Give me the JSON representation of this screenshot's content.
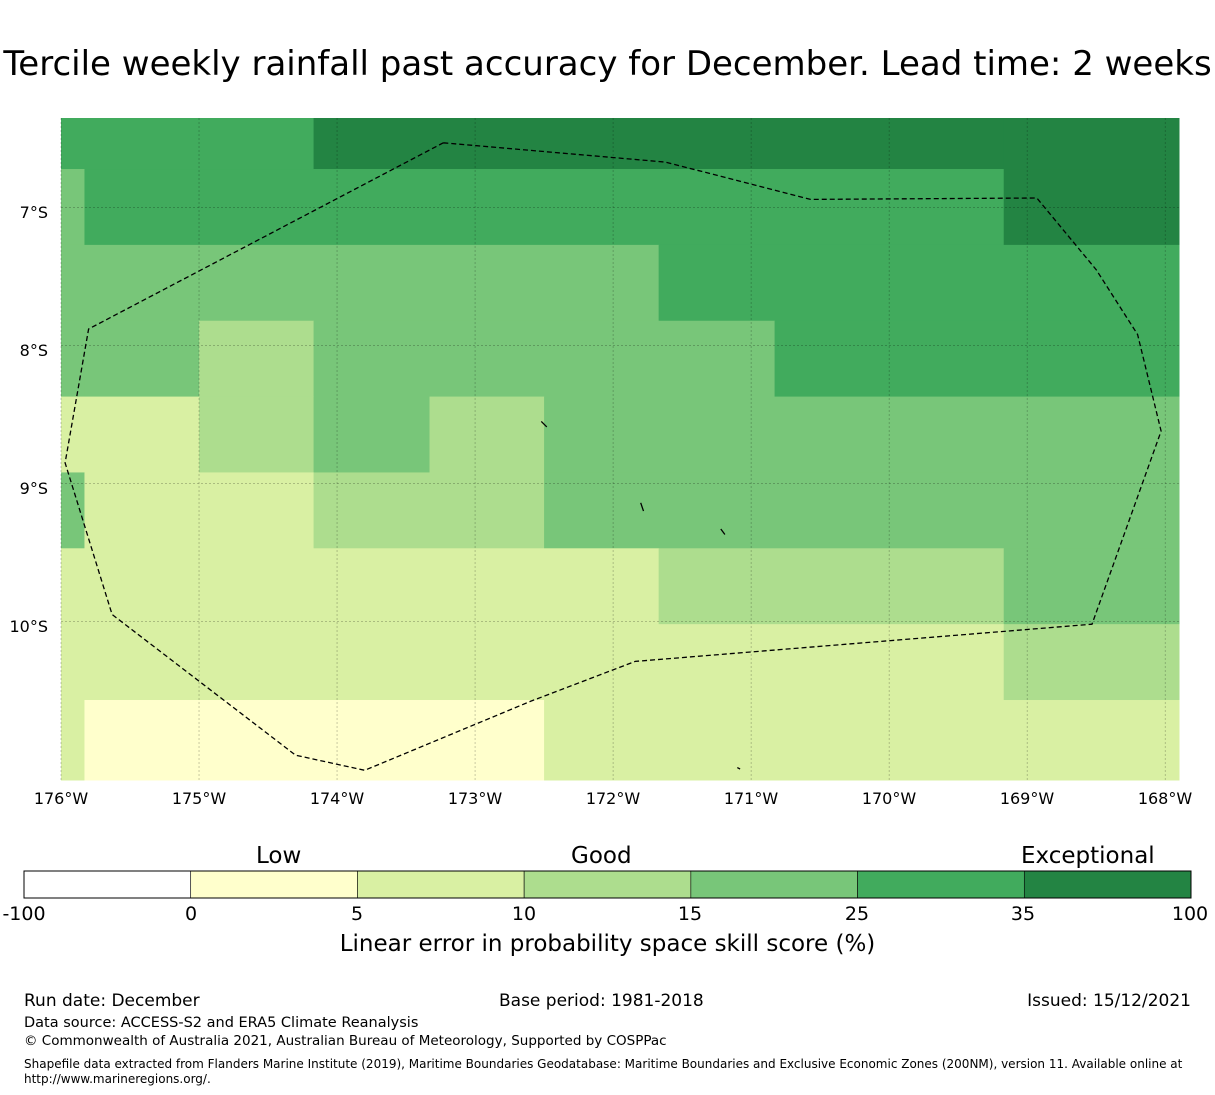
{
  "title": "Tercile weekly rainfall past accuracy for December. Lead time: 2 weeks",
  "map": {
    "lat_labels": [
      "7°S",
      "8°S",
      "9°S",
      "10°S"
    ],
    "lon_labels": [
      "176°W",
      "175°W",
      "174°W",
      "173°W",
      "172°W",
      "171°W",
      "170°W",
      "169°W",
      "168°W"
    ],
    "lon_range": [
      -176,
      -167.9
    ],
    "lat_range": [
      -11.15,
      -6.35
    ],
    "grid_cells": [
      {
        "lon0": -176.0,
        "lon1": -174.17,
        "lat0": -6.35,
        "lat1": -6.72,
        "category": 5
      },
      {
        "lon0": -174.17,
        "lon1": -169.17,
        "lat0": -6.35,
        "lat1": -6.72,
        "category": 6
      },
      {
        "lon0": -169.17,
        "lon1": -167.9,
        "lat0": -6.35,
        "lat1": -6.72,
        "category": 6
      },
      {
        "lon0": -176.0,
        "lon1": -175.83,
        "lat0": -6.72,
        "lat1": -7.27,
        "category": 4
      },
      {
        "lon0": -175.83,
        "lon1": -169.17,
        "lat0": -6.72,
        "lat1": -7.27,
        "category": 5
      },
      {
        "lon0": -169.17,
        "lon1": -167.9,
        "lat0": -6.72,
        "lat1": -7.27,
        "category": 6
      },
      {
        "lon0": -176.0,
        "lon1": -171.67,
        "lat0": -7.27,
        "lat1": -7.82,
        "category": 4
      },
      {
        "lon0": -171.67,
        "lon1": -167.9,
        "lat0": -7.27,
        "lat1": -7.82,
        "category": 5
      },
      {
        "lon0": -176.0,
        "lon1": -175.83,
        "lat0": -7.82,
        "lat1": -8.37,
        "category": 4
      },
      {
        "lon0": -175.83,
        "lon1": -175.0,
        "lat0": -7.82,
        "lat1": -8.37,
        "category": 4
      },
      {
        "lon0": -175.0,
        "lon1": -174.17,
        "lat0": -7.82,
        "lat1": -8.37,
        "category": 3
      },
      {
        "lon0": -174.17,
        "lon1": -170.83,
        "lat0": -7.82,
        "lat1": -8.37,
        "category": 4
      },
      {
        "lon0": -170.83,
        "lon1": -167.9,
        "lat0": -7.82,
        "lat1": -8.37,
        "category": 5
      },
      {
        "lon0": -176.0,
        "lon1": -175.0,
        "lat0": -8.37,
        "lat1": -8.92,
        "category": 2
      },
      {
        "lon0": -175.0,
        "lon1": -174.17,
        "lat0": -8.37,
        "lat1": -8.92,
        "category": 3
      },
      {
        "lon0": -174.17,
        "lon1": -173.33,
        "lat0": -8.37,
        "lat1": -8.92,
        "category": 4
      },
      {
        "lon0": -173.33,
        "lon1": -172.5,
        "lat0": -8.37,
        "lat1": -8.92,
        "category": 3
      },
      {
        "lon0": -172.5,
        "lon1": -167.9,
        "lat0": -8.37,
        "lat1": -8.92,
        "category": 4
      },
      {
        "lon0": -176.0,
        "lon1": -175.83,
        "lat0": -8.92,
        "lat1": -9.47,
        "category": 4
      },
      {
        "lon0": -175.83,
        "lon1": -174.17,
        "lat0": -8.92,
        "lat1": -9.47,
        "category": 2
      },
      {
        "lon0": -174.17,
        "lon1": -172.5,
        "lat0": -8.92,
        "lat1": -9.47,
        "category": 3
      },
      {
        "lon0": -172.5,
        "lon1": -167.9,
        "lat0": -8.92,
        "lat1": -9.47,
        "category": 4
      },
      {
        "lon0": -176.0,
        "lon1": -171.67,
        "lat0": -9.47,
        "lat1": -10.02,
        "category": 2
      },
      {
        "lon0": -171.67,
        "lon1": -169.17,
        "lat0": -9.47,
        "lat1": -10.02,
        "category": 3
      },
      {
        "lon0": -169.17,
        "lon1": -167.9,
        "lat0": -9.47,
        "lat1": -10.02,
        "category": 4
      },
      {
        "lon0": -176.0,
        "lon1": -169.17,
        "lat0": -10.02,
        "lat1": -10.57,
        "category": 2
      },
      {
        "lon0": -169.17,
        "lon1": -167.9,
        "lat0": -10.02,
        "lat1": -10.57,
        "category": 3
      },
      {
        "lon0": -176.0,
        "lon1": -175.83,
        "lat0": -10.57,
        "lat1": -11.15,
        "category": 2
      },
      {
        "lon0": -175.83,
        "lon1": -172.5,
        "lat0": -10.57,
        "lat1": -11.15,
        "category": 1
      },
      {
        "lon0": -172.5,
        "lon1": -167.9,
        "lat0": -10.57,
        "lat1": -11.15,
        "category": 2
      }
    ],
    "eez_boundary": [
      [
        -173.23,
        -6.53
      ],
      [
        -171.62,
        -6.67
      ],
      [
        -170.57,
        -6.94
      ],
      [
        -168.93,
        -6.93
      ],
      [
        -168.5,
        -7.45
      ],
      [
        -168.2,
        -7.92
      ],
      [
        -168.03,
        -8.62
      ],
      [
        -168.53,
        -10.02
      ],
      [
        -171.84,
        -10.29
      ],
      [
        -172.6,
        -10.58
      ],
      [
        -173.8,
        -11.08
      ],
      [
        -174.3,
        -10.97
      ],
      [
        -175.63,
        -9.95
      ],
      [
        -175.97,
        -8.85
      ],
      [
        -175.8,
        -7.88
      ],
      [
        -173.23,
        -6.53
      ]
    ],
    "islands": [
      [
        [
          -172.52,
          -8.55
        ],
        [
          -172.48,
          -8.59
        ]
      ],
      [
        [
          -171.8,
          -9.14
        ],
        [
          -171.78,
          -9.2
        ]
      ],
      [
        [
          -171.22,
          -9.33
        ],
        [
          -171.19,
          -9.37
        ]
      ],
      [
        [
          -171.1,
          -11.06
        ],
        [
          -171.08,
          -11.07
        ]
      ]
    ]
  },
  "colorbar": {
    "ticks": [
      "-100",
      "0",
      "5",
      "10",
      "15",
      "25",
      "35",
      "100"
    ],
    "colors": [
      "#ffffff",
      "#ffffcc",
      "#d9f0a3",
      "#addd8e",
      "#78c679",
      "#41ab5d",
      "#238443"
    ],
    "categories": [
      "Low",
      "Good",
      "Exceptional"
    ],
    "label": "Linear error in probability space skill score (%)"
  },
  "footer": {
    "run_date": "Run date: December",
    "base_period": "Base period: 1981-2018",
    "issued": "Issued: 15/12/2021",
    "data_source": "Data source: ACCESS-S2 and ERA5 Climate Reanalysis",
    "copyright": "© Commonwealth of Australia 2021, Australian Bureau of Meteorology, Supported by COSPPac",
    "shapefile_line1": "Shapefile data extracted from Flanders Marine Institute (2019), Maritime Boundaries Geodatabase: Maritime Boundaries and Exclusive Economic Zones (200NM), version 11. Available online at",
    "shapefile_line2": "http://www.marineregions.org/."
  }
}
